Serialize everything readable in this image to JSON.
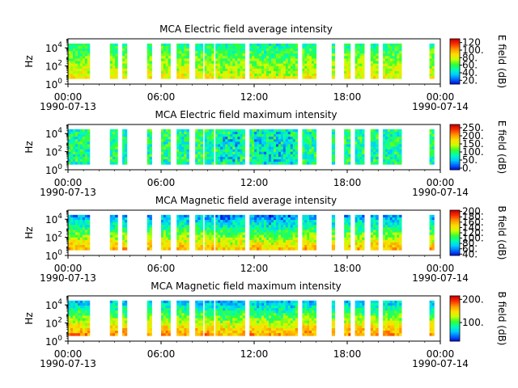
{
  "figure": {
    "panels": [
      {
        "title": "MCA  Electric field average intensity",
        "ylabel": "Hz",
        "cbar_label": "E field (dB)",
        "cbar_ticks": [
          {
            "label": "120",
            "v": 120
          },
          {
            "label": "100.",
            "v": 100
          },
          {
            "label": "80.",
            "v": 80
          },
          {
            "label": "60.",
            "v": 60
          },
          {
            "label": "40.",
            "v": 40
          },
          {
            "label": "20.",
            "v": 20
          }
        ],
        "cbar_range": [
          10,
          130
        ],
        "mean_level": 0.5
      },
      {
        "title": "MCA  Electric field maximum intensity",
        "ylabel": "Hz",
        "cbar_label": "E field (dB)",
        "cbar_ticks": [
          {
            "label": "250.",
            "v": 250
          },
          {
            "label": "200.",
            "v": 200
          },
          {
            "label": "150.",
            "v": 150
          },
          {
            "label": "100.",
            "v": 100
          },
          {
            "label": "50.",
            "v": 50
          },
          {
            "label": "0.",
            "v": 0
          }
        ],
        "cbar_range": [
          -10,
          270
        ],
        "mean_level": 0.38
      },
      {
        "title": "MCA  Magnetic field average intensity",
        "ylabel": "Hz",
        "cbar_label": "B field (dB)",
        "cbar_ticks": [
          {
            "label": "200.",
            "v": 200
          },
          {
            "label": "180.",
            "v": 180
          },
          {
            "label": "160.",
            "v": 160
          },
          {
            "label": "140.",
            "v": 140
          },
          {
            "label": "120.",
            "v": 120
          },
          {
            "label": "100.",
            "v": 100
          },
          {
            "label": "80.",
            "v": 80
          },
          {
            "label": "60.",
            "v": 60
          },
          {
            "label": "40.",
            "v": 40
          }
        ],
        "cbar_range": [
          35,
          205
        ],
        "mean_level": 0.45
      },
      {
        "title": "MCA  Magnetic field maximum intensity",
        "ylabel": "Hz",
        "cbar_label": "B field (dB)",
        "cbar_ticks": [
          {
            "label": "200.",
            "v": 200
          },
          {
            "label": "100.",
            "v": 100
          }
        ],
        "cbar_range": [
          20,
          215
        ],
        "mean_level": 0.5
      }
    ],
    "xticks": [
      "00:00",
      "06:00",
      "12:00",
      "18:00",
      "00:00"
    ],
    "xdates": [
      "1990-07-13",
      "",
      "",
      "",
      "1990-07-14"
    ],
    "yticks": [
      {
        "base": "10",
        "exp": "0"
      },
      {
        "base": "10",
        "exp": "2"
      },
      {
        "base": "10",
        "exp": "4"
      }
    ]
  },
  "chart_data": {
    "type": "heatmap",
    "x_range_hours": [
      0,
      24
    ],
    "y_scale": "log",
    "y_range_hz": [
      1,
      100000
    ],
    "data_coverage_hours": [
      [
        0.0,
        1.4
      ],
      [
        2.7,
        3.2
      ],
      [
        3.5,
        3.8
      ],
      [
        5.1,
        5.4
      ],
      [
        6.0,
        6.6
      ],
      [
        7.0,
        7.8
      ],
      [
        8.2,
        8.7
      ],
      [
        8.8,
        9.4
      ],
      [
        9.5,
        11.4
      ],
      [
        11.7,
        14.8
      ],
      [
        15.1,
        16.0
      ],
      [
        17.0,
        17.2
      ],
      [
        17.8,
        18.2
      ],
      [
        18.5,
        19.1
      ],
      [
        19.5,
        20.0
      ],
      [
        20.3,
        21.5
      ],
      [
        23.3,
        23.6
      ]
    ],
    "note": "MCA spectrogram of intensity (dB) vs time and frequency"
  },
  "colors": {
    "colormap": [
      "#0000d4",
      "#0066ff",
      "#00ccff",
      "#00ffb2",
      "#33ff33",
      "#ccff00",
      "#ffdd00",
      "#ff9900",
      "#ff3300",
      "#cc0000"
    ]
  }
}
